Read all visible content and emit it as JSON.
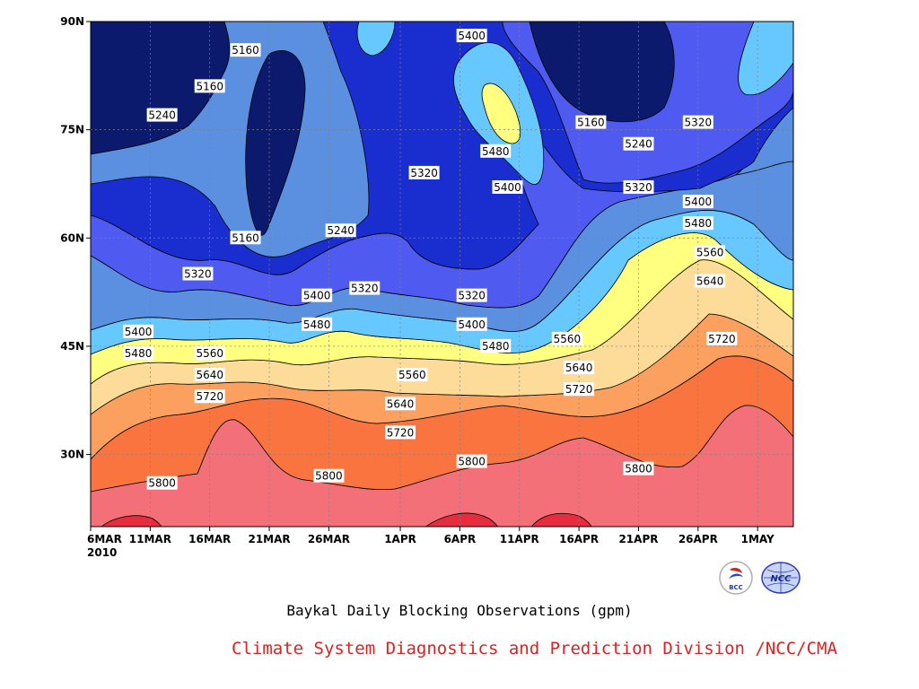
{
  "chart_data": {
    "type": "heatmap",
    "title": "Baykal Daily Blocking Observations (gpm)",
    "credit": "Climate System Diagnostics and Prediction Division /NCC/CMA",
    "year_label": "2010",
    "x_ticks": [
      "6MAR",
      "11MAR",
      "16MAR",
      "21MAR",
      "26MAR",
      "1APR",
      "6APR",
      "11APR",
      "16APR",
      "21APR",
      "26APR",
      "1MAY"
    ],
    "y_ticks": [
      "90N",
      "75N",
      "60N",
      "45N",
      "30N"
    ],
    "x_range": [
      "2010-03-06",
      "2010-05-04"
    ],
    "y_range_deg": [
      20,
      90
    ],
    "contour_levels": [
      5160,
      5240,
      5320,
      5400,
      5480,
      5560,
      5640,
      5720,
      5800,
      5880
    ],
    "level_colors": {
      "below_5160": "#0c1a6e",
      "5160-5240": "#1a2ed0",
      "5240-5320": "#4f5af0",
      "5320-5400": "#5b90e0",
      "5400-5480": "#66c8ff",
      "5480-5560": "#ffff80",
      "5560-5640": "#fcdc98",
      "5640-5720": "#fca060",
      "5720-5800": "#fa7440",
      "5800-5880": "#f47078",
      "above_5880": "#e82c40"
    },
    "contour_labels": [
      {
        "text": "5160",
        "date": "2010-03-19",
        "lat": 86
      },
      {
        "text": "5160",
        "date": "2010-03-16",
        "lat": 81
      },
      {
        "text": "5240",
        "date": "2010-03-12",
        "lat": 77
      },
      {
        "text": "5160",
        "date": "2010-03-19",
        "lat": 60
      },
      {
        "text": "5240",
        "date": "2010-03-27",
        "lat": 61
      },
      {
        "text": "5320",
        "date": "2010-03-15",
        "lat": 55
      },
      {
        "text": "5400",
        "date": "2010-03-25",
        "lat": 52
      },
      {
        "text": "5320",
        "date": "2010-03-29",
        "lat": 53
      },
      {
        "text": "5480",
        "date": "2010-03-25",
        "lat": 48
      },
      {
        "text": "5400",
        "date": "2010-03-10",
        "lat": 47
      },
      {
        "text": "5480",
        "date": "2010-03-10",
        "lat": 44
      },
      {
        "text": "5560",
        "date": "2010-03-16",
        "lat": 44
      },
      {
        "text": "5640",
        "date": "2010-03-16",
        "lat": 41
      },
      {
        "text": "5720",
        "date": "2010-03-16",
        "lat": 38
      },
      {
        "text": "5560",
        "date": "2010-04-02",
        "lat": 41
      },
      {
        "text": "5640",
        "date": "2010-04-01",
        "lat": 37
      },
      {
        "text": "5720",
        "date": "2010-04-01",
        "lat": 33
      },
      {
        "text": "5800",
        "date": "2010-03-12",
        "lat": 26
      },
      {
        "text": "5800",
        "date": "2010-03-26",
        "lat": 27
      },
      {
        "text": "5800",
        "date": "2010-04-07",
        "lat": 29
      },
      {
        "text": "5800",
        "date": "2010-04-21",
        "lat": 28
      },
      {
        "text": "5400",
        "date": "2010-04-07",
        "lat": 88
      },
      {
        "text": "5480",
        "date": "2010-04-09",
        "lat": 72
      },
      {
        "text": "5400",
        "date": "2010-04-10",
        "lat": 67
      },
      {
        "text": "5320",
        "date": "2010-04-03",
        "lat": 69
      },
      {
        "text": "5320",
        "date": "2010-04-07",
        "lat": 52
      },
      {
        "text": "5400",
        "date": "2010-04-07",
        "lat": 48
      },
      {
        "text": "5480",
        "date": "2010-04-09",
        "lat": 45
      },
      {
        "text": "5560",
        "date": "2010-04-15",
        "lat": 46
      },
      {
        "text": "5640",
        "date": "2010-04-16",
        "lat": 42
      },
      {
        "text": "5720",
        "date": "2010-04-16",
        "lat": 39
      },
      {
        "text": "5160",
        "date": "2010-04-17",
        "lat": 76
      },
      {
        "text": "5240",
        "date": "2010-04-21",
        "lat": 73
      },
      {
        "text": "5320",
        "date": "2010-04-21",
        "lat": 67
      },
      {
        "text": "5400",
        "date": "2010-04-26",
        "lat": 65
      },
      {
        "text": "5480",
        "date": "2010-04-26",
        "lat": 62
      },
      {
        "text": "5560",
        "date": "2010-04-27",
        "lat": 58
      },
      {
        "text": "5640",
        "date": "2010-04-27",
        "lat": 54
      },
      {
        "text": "5720",
        "date": "2010-04-28",
        "lat": 46
      },
      {
        "text": "5320",
        "date": "2010-04-26",
        "lat": 76
      }
    ],
    "grid": true,
    "logos": [
      "BCC",
      "NCC"
    ]
  }
}
